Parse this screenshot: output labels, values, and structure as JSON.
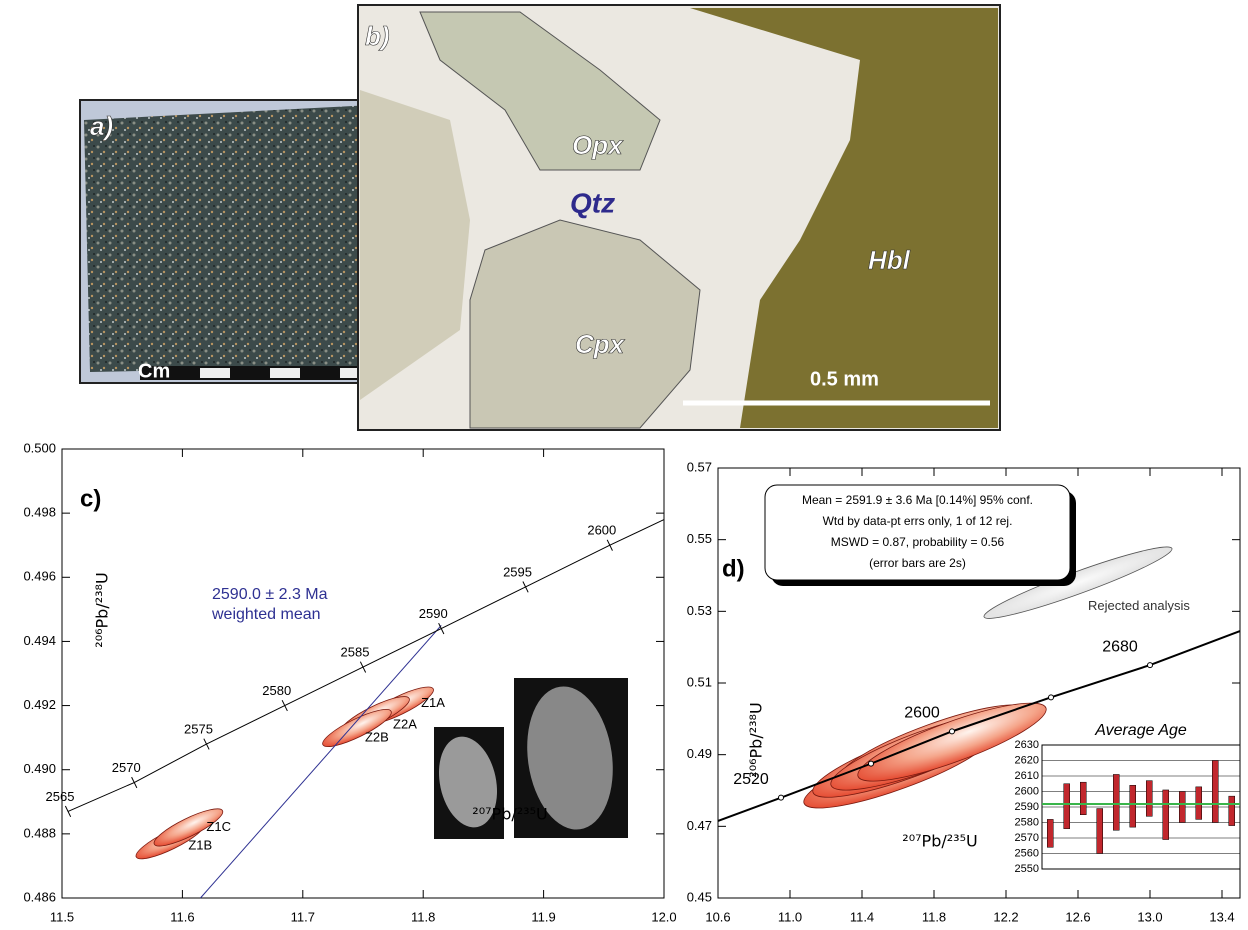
{
  "photos": [
    {
      "label": "a)",
      "annotations": [
        "Cm"
      ]
    },
    {
      "label": "b)",
      "annotations": [
        "Opx",
        "Qtz",
        "Cpx",
        "Hbl"
      ],
      "scale_bar": "0.5 mm"
    }
  ],
  "chart_data": [
    {
      "type": "concordia",
      "panel_label": "c)",
      "x_label": "²⁰⁷Pb/²³⁵U",
      "y_label": "²⁰⁶Pb/²³⁸U",
      "xlim": [
        11.5,
        12.0
      ],
      "xticks": [
        11.5,
        11.6,
        11.7,
        11.8,
        11.9,
        {
          "value": 12.0,
          "label": "12.0"
        }
      ],
      "ylim": [
        0.486,
        0.5
      ],
      "yticks": [
        0.486,
        0.488,
        {
          "value": 0.49,
          "label": "0.490"
        },
        0.492,
        0.494,
        0.496,
        0.498,
        {
          "value": 0.5,
          "label": "0.500"
        }
      ],
      "concordia": {
        "ages": [
          2565,
          2570,
          2575,
          2580,
          2585,
          2590,
          2595,
          2600,
          null
        ],
        "x": [
          11.505,
          11.56,
          11.62,
          11.685,
          11.75,
          11.815,
          11.885,
          11.955,
          12.0
        ],
        "y": [
          0.4887,
          0.4896,
          0.4908,
          0.492,
          0.4932,
          0.4944,
          0.4957,
          0.497,
          0.4978
        ]
      },
      "mean_line": {
        "x": [
          11.615,
          11.815
        ],
        "y": [
          0.486,
          0.4945
        ],
        "color": "#2e3192"
      },
      "annotation": [
        "2590.0 ± 2.3 Ma",
        "weighted mean"
      ],
      "ellipses": [
        {
          "name": "Z1A",
          "x": 11.78,
          "y": 0.492
        },
        {
          "name": "Z2A",
          "x": 11.76,
          "y": 0.4917
        },
        {
          "name": "Z2B",
          "x": 11.745,
          "y": 0.4913
        },
        {
          "name": "Z1B",
          "x": 11.59,
          "y": 0.4878
        },
        {
          "name": "Z1C",
          "x": 11.605,
          "y": 0.4882
        }
      ]
    },
    {
      "type": "concordia",
      "panel_label": "d)",
      "x_label": "²⁰⁷Pb/²³⁵U",
      "y_label": "²⁰⁶Pb/²³⁸U",
      "xlim": [
        10.6,
        13.5
      ],
      "xticks": [
        10.6,
        {
          "value": 11.0,
          "label": "11.0"
        },
        11.4,
        11.8,
        12.2,
        12.6,
        {
          "value": 13.0,
          "label": "13.0"
        },
        13.4
      ],
      "ylim": [
        0.45,
        0.57
      ],
      "yticks": [
        0.45,
        0.47,
        0.49,
        0.51,
        0.53,
        0.55,
        0.57
      ],
      "concordia": {
        "ages": [
          null,
          2520,
          null,
          2600,
          null,
          2680,
          null
        ],
        "x": [
          10.6,
          10.95,
          11.45,
          11.9,
          12.45,
          13.0,
          13.5
        ],
        "y": [
          0.4715,
          0.478,
          0.4875,
          0.4965,
          0.506,
          0.515,
          0.5245
        ]
      },
      "info_box": [
        "Mean = 2591.9 ± 3.6 Ma  [0.14%]  95% conf.",
        "Wtd by data-pt errs only, 1 of 12 rej.",
        "MSWD = 0.87, probability = 0.56",
        "(error bars are 2s)"
      ],
      "ellipses": [
        {
          "name": null,
          "x": 11.6,
          "y": 0.486
        },
        {
          "name": null,
          "x": 11.65,
          "y": 0.489
        },
        {
          "name": null,
          "x": 11.8,
          "y": 0.493
        },
        {
          "name": null,
          "x": 11.75,
          "y": 0.491
        },
        {
          "name": null,
          "x": 11.9,
          "y": 0.4935
        }
      ],
      "rejected": {
        "name": "Rejected analysis",
        "x": 12.6,
        "y": 0.538
      },
      "inset": {
        "title": "Average Age",
        "ylim": [
          2550,
          2630
        ],
        "yticks": [
          2550,
          2560,
          2570,
          2580,
          2590,
          2600,
          2610,
          2620,
          2630
        ],
        "low": [
          2564,
          2576,
          2585,
          2560,
          2575,
          2577,
          2584,
          2569,
          2580,
          2582,
          2580,
          2578
        ],
        "high": [
          2582,
          2605,
          2606,
          2589,
          2611,
          2604,
          2607,
          2601,
          2600,
          2603,
          2620,
          2597
        ],
        "mean": 2591.9,
        "bar_color": "#c1272d",
        "mean_color": "#39b54a"
      }
    }
  ]
}
